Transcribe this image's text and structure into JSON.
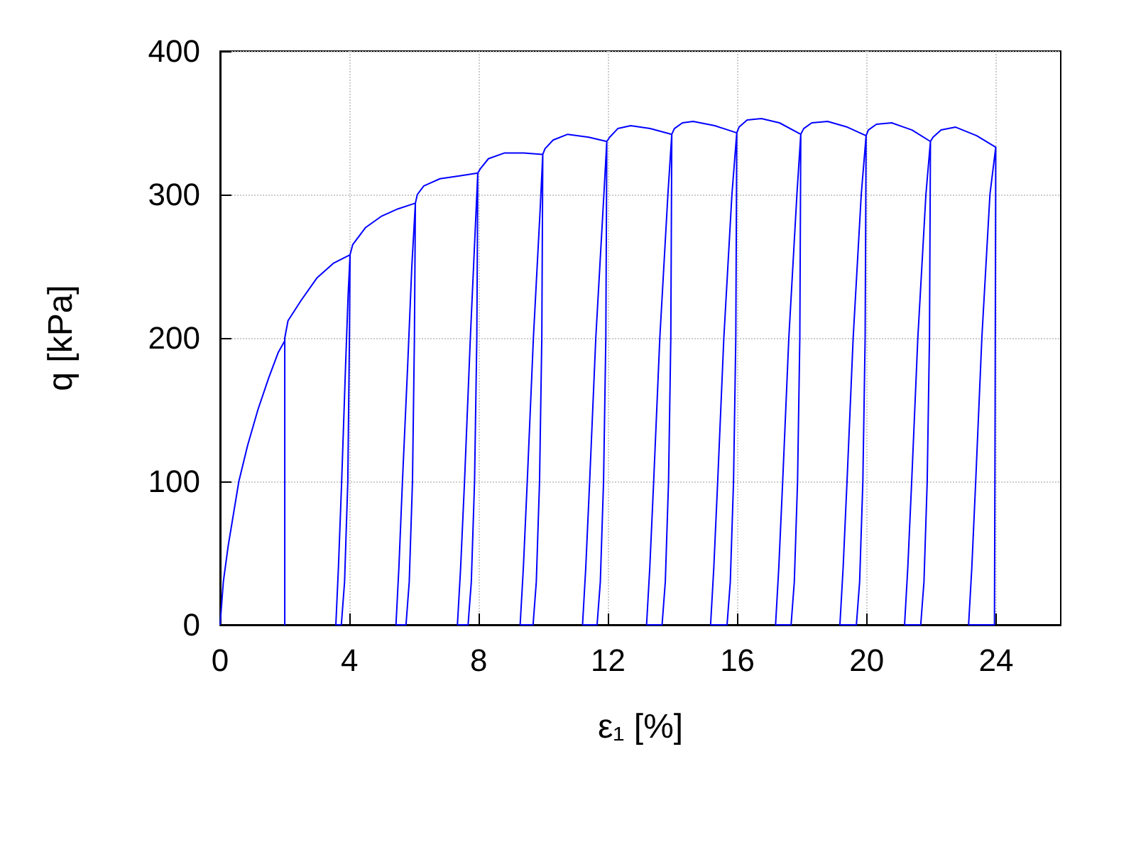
{
  "chart_data": {
    "type": "line",
    "xlabel": "ε₁ [%]",
    "ylabel": "q [kPa]",
    "xlim": [
      0,
      26
    ],
    "xticks": [
      0,
      4,
      8,
      12,
      16,
      20,
      24
    ],
    "ylim": [
      0,
      400
    ],
    "yticks": [
      0,
      100,
      200,
      300,
      400
    ],
    "grid": true,
    "series": [
      {
        "color": "#0000ff",
        "x": [
          0,
          0.1,
          0.25,
          0.58,
          0.85,
          1.17,
          1.5,
          1.8,
          2.0,
          2.0,
          2.0,
          2.1,
          2.5,
          3.0,
          3.5,
          4.02,
          4.0,
          3.95,
          3.85,
          3.75,
          3.58,
          3.66,
          3.76,
          3.88,
          3.96,
          4.02,
          4.1,
          4.5,
          5.0,
          5.5,
          6.04,
          6.01,
          5.95,
          5.85,
          5.75,
          5.44,
          5.53,
          5.64,
          5.8,
          5.93,
          6.04,
          6.1,
          6.3,
          6.8,
          7.4,
          7.97,
          7.94,
          7.87,
          7.77,
          7.67,
          7.34,
          7.44,
          7.56,
          7.74,
          7.9,
          7.97,
          8.05,
          8.3,
          8.8,
          9.4,
          9.98,
          9.95,
          9.88,
          9.78,
          9.68,
          9.28,
          9.38,
          9.5,
          9.69,
          9.9,
          9.98,
          10.05,
          10.3,
          10.75,
          11.4,
          11.96,
          11.93,
          11.86,
          11.76,
          11.66,
          11.21,
          11.31,
          11.43,
          11.62,
          11.87,
          11.96,
          12.05,
          12.3,
          12.7,
          13.3,
          13.97,
          13.94,
          13.87,
          13.77,
          13.67,
          13.19,
          13.29,
          13.41,
          13.6,
          13.85,
          13.97,
          14.05,
          14.3,
          14.63,
          15.3,
          15.98,
          15.95,
          15.88,
          15.78,
          15.68,
          15.17,
          15.27,
          15.39,
          15.58,
          15.83,
          15.98,
          16.05,
          16.3,
          16.74,
          17.3,
          17.96,
          17.93,
          17.86,
          17.76,
          17.66,
          17.18,
          17.28,
          17.4,
          17.59,
          17.84,
          17.96,
          18.05,
          18.3,
          18.79,
          19.4,
          19.98,
          19.95,
          19.88,
          19.78,
          19.68,
          19.17,
          19.27,
          19.39,
          19.58,
          19.83,
          19.98,
          20.05,
          20.3,
          20.77,
          21.4,
          21.97,
          21.94,
          21.87,
          21.77,
          21.67,
          21.17,
          21.27,
          21.39,
          21.58,
          21.83,
          21.97,
          22.05,
          22.3,
          22.75,
          23.4,
          23.99,
          23.97,
          23.95,
          23.15,
          23.25,
          23.37,
          23.56,
          23.81,
          23.99
        ],
        "values": [
          0,
          30,
          55,
          100,
          125,
          150,
          172,
          190,
          198,
          0,
          200,
          212,
          226,
          242,
          252,
          258,
          200,
          100,
          30,
          0,
          0,
          40,
          100,
          180,
          230,
          258,
          265,
          277,
          285,
          290,
          294,
          200,
          100,
          30,
          0,
          0,
          40,
          100,
          180,
          250,
          294,
          300,
          306,
          311,
          313,
          315,
          200,
          100,
          30,
          0,
          0,
          40,
          100,
          200,
          280,
          315,
          318,
          325,
          329,
          329,
          328,
          200,
          100,
          30,
          0,
          0,
          40,
          100,
          200,
          290,
          328,
          332,
          338,
          342,
          340,
          337,
          200,
          100,
          30,
          0,
          0,
          40,
          100,
          200,
          300,
          337,
          340,
          346,
          348,
          346,
          342,
          200,
          100,
          30,
          0,
          0,
          40,
          100,
          200,
          300,
          342,
          346,
          350,
          351,
          348,
          343,
          200,
          100,
          30,
          0,
          0,
          40,
          100,
          200,
          300,
          343,
          347,
          352,
          353,
          350,
          342,
          200,
          100,
          30,
          0,
          0,
          40,
          100,
          200,
          300,
          342,
          346,
          350,
          351,
          347,
          341,
          200,
          100,
          30,
          0,
          0,
          40,
          100,
          200,
          300,
          341,
          345,
          349,
          350,
          345,
          337,
          200,
          100,
          30,
          0,
          0,
          40,
          100,
          200,
          300,
          337,
          340,
          345,
          347,
          341,
          333,
          150,
          0,
          0,
          40,
          100,
          200,
          300,
          333
        ]
      }
    ]
  }
}
